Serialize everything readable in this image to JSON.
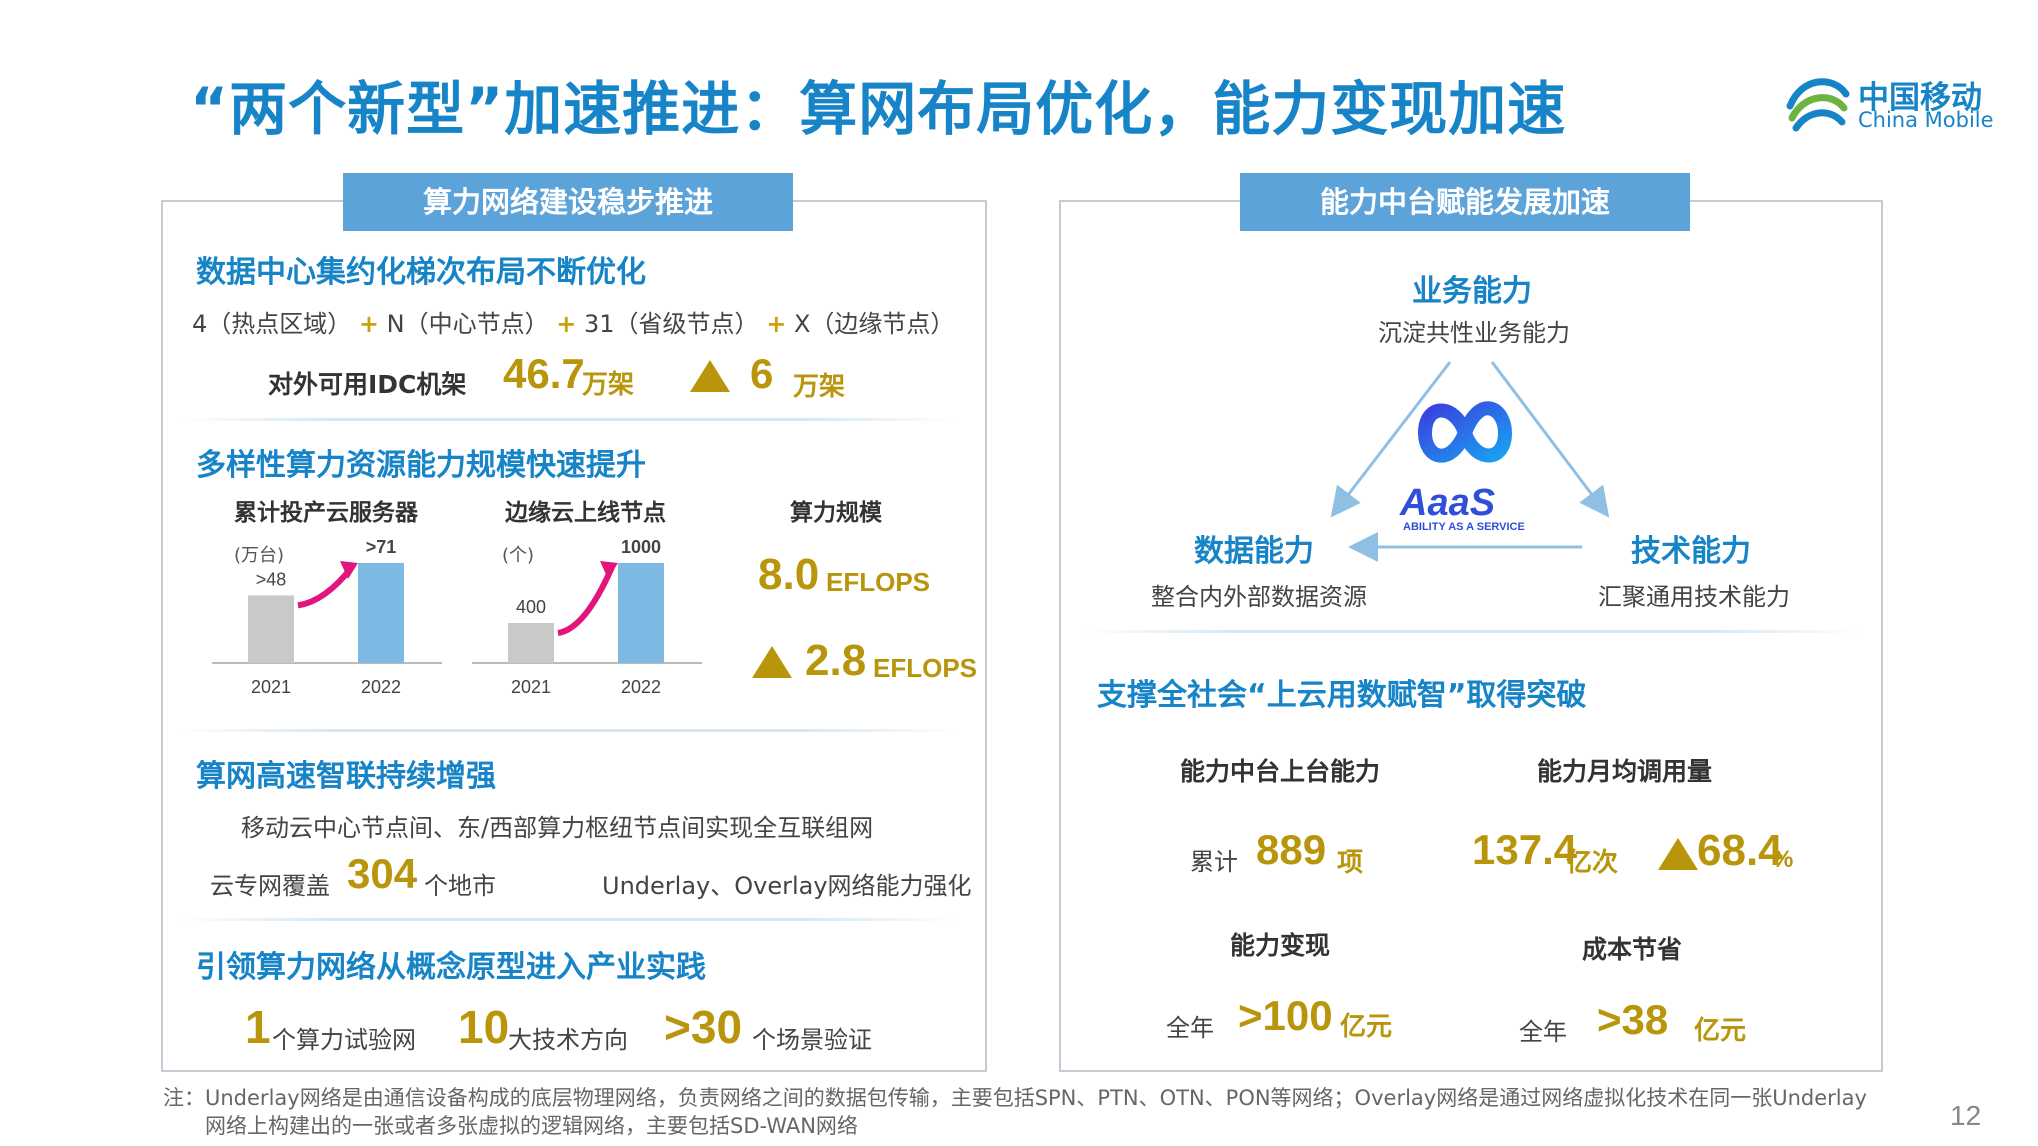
{
  "header": {
    "title": "“两个新型”加速推进：算网布局优化，能力变现加速",
    "logo_cn": "中国移动",
    "logo_en": "China Mobile"
  },
  "left": {
    "tab": "算力网络建设稳步推进",
    "s1": {
      "heading": "数据中心集约化梯次布局不断优化",
      "p1": "4（热点区域）",
      "p2": "N（中心节点）",
      "p3": "31（省级节点）",
      "p4": "X（边缘节点）",
      "plus": "+",
      "idc_label": "对外可用IDC机架",
      "idc_value": "46.7",
      "idc_unit": "万架",
      "idc_inc": "6",
      "idc_inc_unit": "万架"
    },
    "s2": {
      "heading": "多样性算力资源能力规模快速提升",
      "c1_title": "累计投产云服务器",
      "c1_unit": "(万台)",
      "c2_title": "边缘云上线节点",
      "c2_unit": "(个)",
      "c3_title": "算力规模",
      "scale_value": "8.0",
      "scale_unit": "EFLOPS",
      "scale_inc": "2.8",
      "scale_inc_unit": "EFLOPS"
    },
    "s3": {
      "heading": "算网高速智联持续增强",
      "line1": "移动云中心节点间、东/西部算力枢纽节点间实现全互联组网",
      "cover_label": "云专网覆盖",
      "cover_value": "304",
      "cover_unit": "个地市",
      "underlay": "Underlay、Overlay网络能力强化"
    },
    "s4": {
      "heading": "引领算力网络从概念原型进入产业实践",
      "v1": "1",
      "t1": "个算力试验网",
      "v2": "10",
      "t2": "大技术方向",
      "v3": ">30",
      "t3": "个场景验证"
    }
  },
  "right": {
    "tab": "能力中台赋能发展加速",
    "top_title": "业务能力",
    "top_sub": "沉淀共性业务能力",
    "left_title": "数据能力",
    "left_sub": "整合内外部数据资源",
    "right_title": "技术能力",
    "right_sub": "汇聚通用技术能力",
    "aaas_word": "AaaS",
    "aaas_tag": "ABILITY AS A SERVICE",
    "s2_heading": "支撑全社会“上云用数赋智”取得突破",
    "k1_title": "能力中台上台能力",
    "k1_prefix": "累计",
    "k1_value": "889",
    "k1_unit": "项",
    "k2_title": "能力月均调用量",
    "k2_value": "137.4",
    "k2_unit": "亿次",
    "k2_inc": "68.4",
    "k2_inc_unit": "%",
    "k3_title": "能力变现",
    "k3_prefix": "全年",
    "k3_value": ">100",
    "k3_unit": "亿元",
    "k4_title": "成本节省",
    "k4_prefix": "全年",
    "k4_value": ">38",
    "k4_unit": "亿元"
  },
  "footer": {
    "note1": "注：Underlay网络是由通信设备构成的底层物理网络，负责网络之间的数据包传输，主要包括SPN、PTN、OTN、PON等网络；Overlay网络是通过网络虚拟化技术在同一张Underlay",
    "note2": "网络上构建出的一张或者多张虚拟的逻辑网络，主要包括SD-WAN网络",
    "page": "12"
  },
  "chart_data": [
    {
      "type": "bar",
      "title": "累计投产云服务器",
      "ylabel": "(万台)",
      "categories": [
        "2021",
        "2022"
      ],
      "values": [
        48,
        71
      ],
      "data_labels": [
        ">48",
        ">71"
      ],
      "colors": [
        "#c9c9c9",
        "#7db9e3"
      ]
    },
    {
      "type": "bar",
      "title": "边缘云上线节点",
      "ylabel": "(个)",
      "categories": [
        "2021",
        "2022"
      ],
      "values": [
        400,
        1000
      ],
      "data_labels": [
        "400",
        "1000"
      ],
      "colors": [
        "#c9c9c9",
        "#7db9e3"
      ]
    }
  ]
}
